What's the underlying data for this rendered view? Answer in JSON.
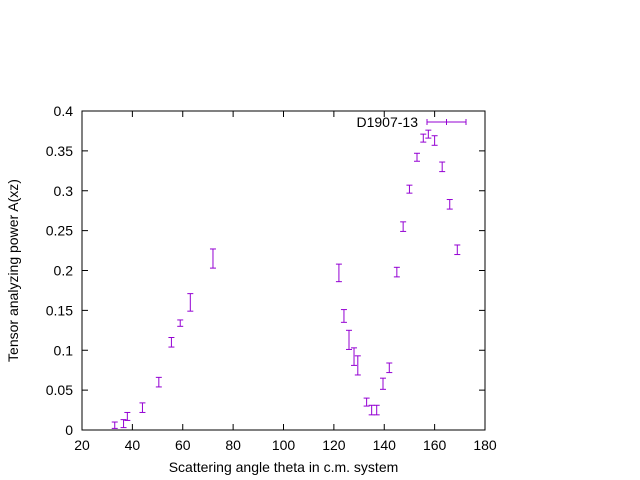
{
  "chart_data": {
    "type": "scatter",
    "xlabel": "Scattering angle theta in c.m. system",
    "ylabel": "Tensor analyzing power A(xz)",
    "xlim": [
      20,
      180
    ],
    "ylim": [
      0,
      0.4
    ],
    "xticks": [
      20,
      40,
      60,
      80,
      100,
      120,
      140,
      160,
      180
    ],
    "yticks": [
      0,
      0.05,
      0.1,
      0.15,
      0.2,
      0.25,
      0.3,
      0.35,
      0.4
    ],
    "ytick_labels": [
      "0",
      "0.05",
      "0.1",
      "0.15",
      "0.2",
      "0.25",
      "0.3",
      "0.35",
      "0.4"
    ],
    "grid": false,
    "legend_position": "top-right",
    "color": "#9400d3",
    "series": [
      {
        "name": "D1907-13",
        "points": [
          {
            "x": 33,
            "y": 0.006,
            "err": 0.004
          },
          {
            "x": 36.5,
            "y": 0.008,
            "err": 0.005
          },
          {
            "x": 38,
            "y": 0.017,
            "err": 0.005
          },
          {
            "x": 44,
            "y": 0.028,
            "err": 0.006
          },
          {
            "x": 50.5,
            "y": 0.06,
            "err": 0.006
          },
          {
            "x": 55.5,
            "y": 0.11,
            "err": 0.006
          },
          {
            "x": 59,
            "y": 0.134,
            "err": 0.004
          },
          {
            "x": 63,
            "y": 0.16,
            "err": 0.011
          },
          {
            "x": 72,
            "y": 0.215,
            "err": 0.012
          },
          {
            "x": 122,
            "y": 0.197,
            "err": 0.011
          },
          {
            "x": 124,
            "y": 0.143,
            "err": 0.008
          },
          {
            "x": 126,
            "y": 0.113,
            "err": 0.012
          },
          {
            "x": 128,
            "y": 0.092,
            "err": 0.011
          },
          {
            "x": 129.5,
            "y": 0.081,
            "err": 0.012
          },
          {
            "x": 133,
            "y": 0.035,
            "err": 0.005
          },
          {
            "x": 135,
            "y": 0.025,
            "err": 0.006
          },
          {
            "x": 137,
            "y": 0.025,
            "err": 0.006
          },
          {
            "x": 139.5,
            "y": 0.058,
            "err": 0.007
          },
          {
            "x": 142,
            "y": 0.078,
            "err": 0.006
          },
          {
            "x": 145,
            "y": 0.198,
            "err": 0.006
          },
          {
            "x": 147.5,
            "y": 0.255,
            "err": 0.006
          },
          {
            "x": 150,
            "y": 0.302,
            "err": 0.005
          },
          {
            "x": 153,
            "y": 0.342,
            "err": 0.005
          },
          {
            "x": 155.5,
            "y": 0.366,
            "err": 0.005
          },
          {
            "x": 157.5,
            "y": 0.371,
            "err": 0.005
          },
          {
            "x": 160,
            "y": 0.363,
            "err": 0.006
          },
          {
            "x": 163,
            "y": 0.33,
            "err": 0.006
          },
          {
            "x": 166,
            "y": 0.283,
            "err": 0.006
          },
          {
            "x": 169,
            "y": 0.226,
            "err": 0.006
          }
        ]
      }
    ]
  }
}
